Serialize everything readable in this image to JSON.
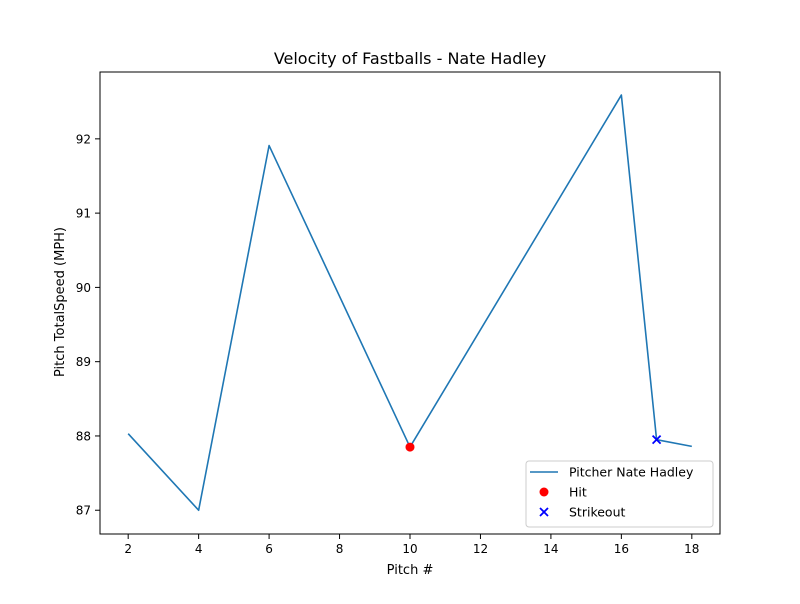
{
  "chart_data": {
    "type": "line",
    "title": "Velocity of Fastballs - Nate Hadley",
    "xlabel": "Pitch #",
    "ylabel": "Pitch TotalSpeed (MPH)",
    "xlim": [
      1.2,
      18.8
    ],
    "ylim": [
      86.68,
      92.9
    ],
    "xticks": [
      2,
      4,
      6,
      8,
      10,
      12,
      14,
      16,
      18
    ],
    "yticks": [
      87,
      88,
      89,
      90,
      91,
      92
    ],
    "grid": false,
    "legend_position": "lower right",
    "series": [
      {
        "name": "Pitcher Nate Hadley",
        "kind": "line",
        "color": "#1f77b4",
        "x": [
          2,
          4,
          6,
          10,
          16,
          17,
          18
        ],
        "y": [
          88.03,
          87.0,
          91.91,
          87.85,
          92.59,
          87.95,
          87.86
        ]
      },
      {
        "name": "Hit",
        "kind": "scatter",
        "marker": "circle",
        "color": "#ff0000",
        "x": [
          10
        ],
        "y": [
          87.85
        ]
      },
      {
        "name": "Strikeout",
        "kind": "scatter",
        "marker": "x",
        "color": "#0000ff",
        "x": [
          17
        ],
        "y": [
          87.95
        ]
      }
    ]
  }
}
